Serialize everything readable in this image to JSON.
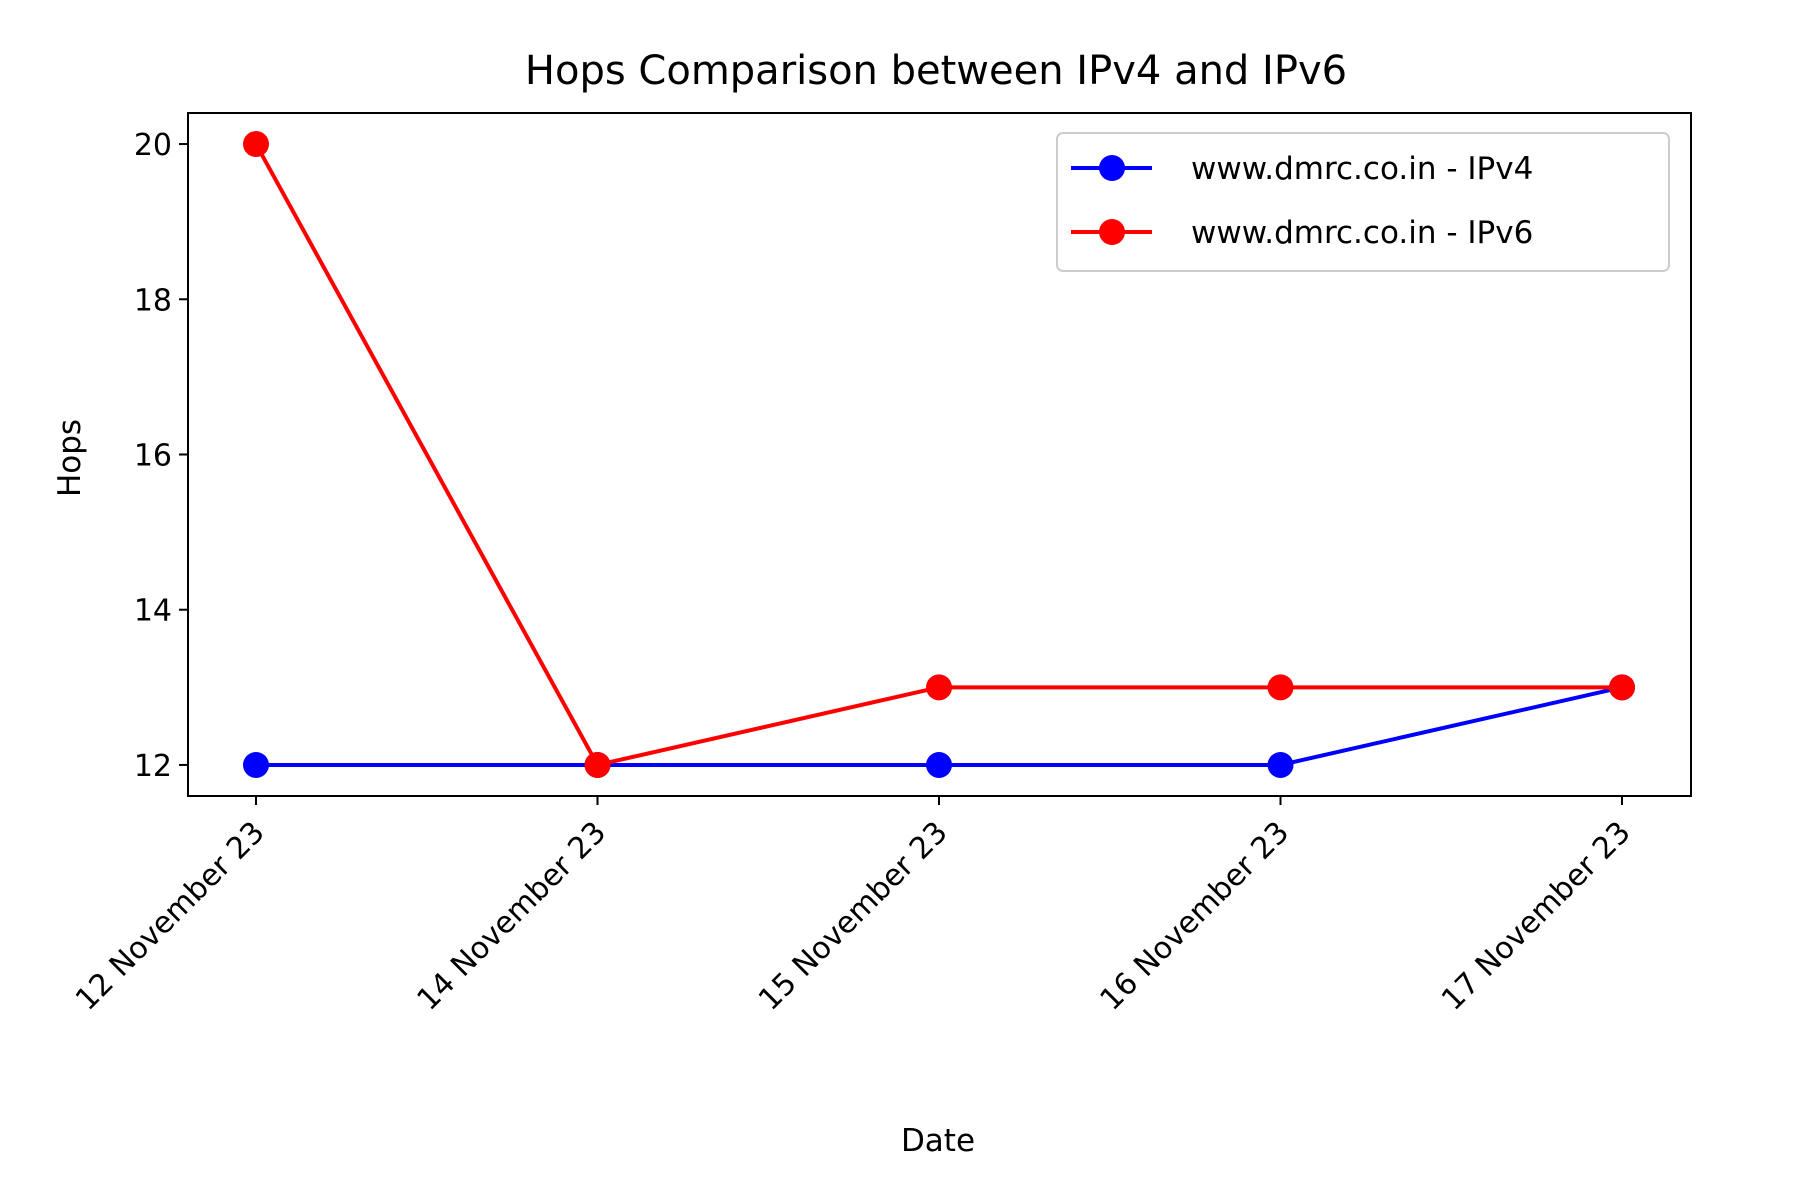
{
  "chart_data": {
    "type": "line",
    "title": "Hops Comparison between IPv4 and IPv6",
    "xlabel": "Date",
    "ylabel": "Hops",
    "categories": [
      "12 November 23",
      "14 November 23",
      "15 November 23",
      "16 November 23",
      "17 November 23"
    ],
    "y_ticks": [
      "12",
      "14",
      "16",
      "18",
      "20"
    ],
    "ylim": [
      11.6,
      20.4
    ],
    "grid": false,
    "legend_position": "top-right",
    "series": [
      {
        "name": "www.dmrc.co.in - IPv4",
        "color": "#0000ff",
        "values": [
          12,
          12,
          12,
          12,
          13
        ]
      },
      {
        "name": "www.dmrc.co.in - IPv6",
        "color": "#ff0000",
        "values": [
          20,
          12,
          13,
          13,
          13
        ]
      }
    ]
  }
}
